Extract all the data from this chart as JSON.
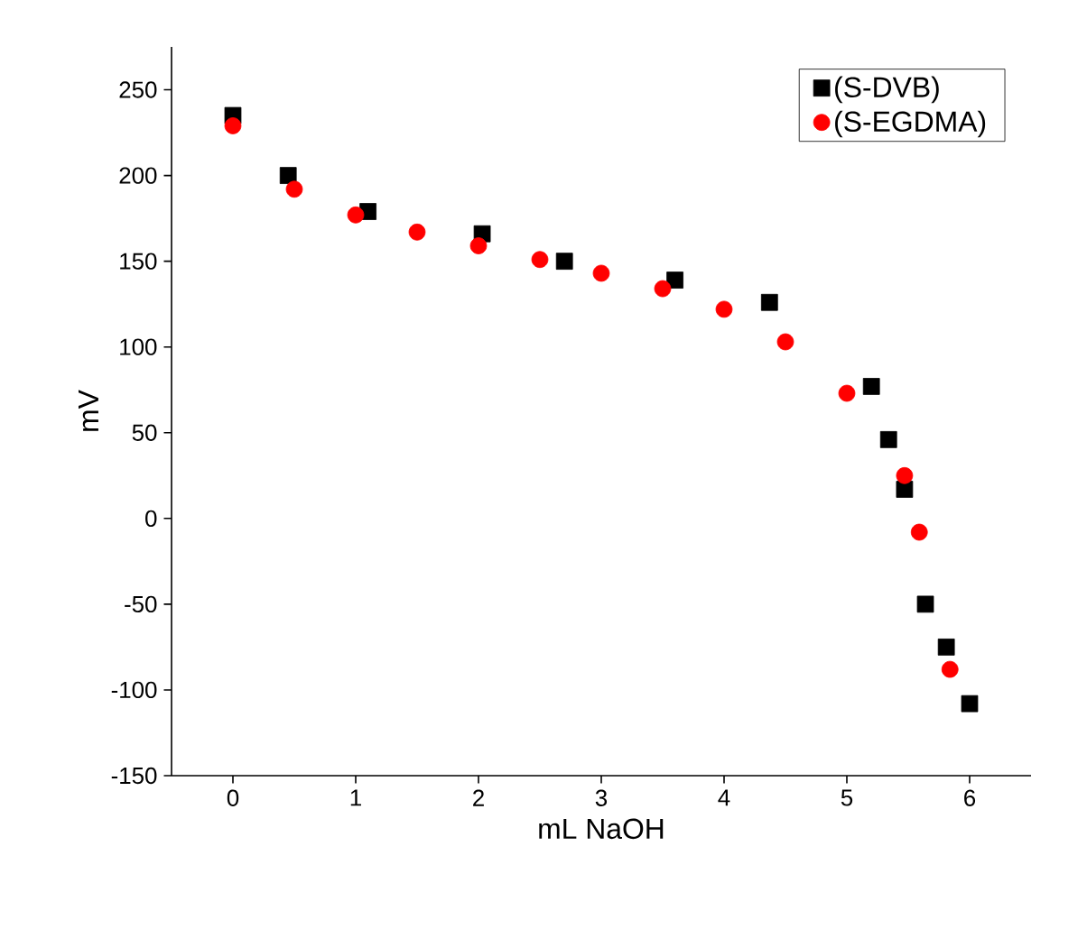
{
  "chart_data": {
    "type": "scatter",
    "xlabel": "mL NaOH",
    "ylabel": "mV",
    "xlim": [
      -0.5,
      6.5
    ],
    "ylim": [
      -150,
      275
    ],
    "xticks": [
      0,
      1,
      2,
      3,
      4,
      5,
      6
    ],
    "yticks": [
      -150,
      -100,
      -50,
      0,
      50,
      100,
      150,
      200,
      250
    ],
    "grid": false,
    "legend": "top right",
    "series": [
      {
        "name": "(S-DVB)",
        "color": "#000000",
        "marker": "square",
        "x": [
          0,
          0.45,
          1.1,
          2.03,
          2.7,
          3.6,
          4.37,
          5.2,
          5.34,
          5.47,
          5.64,
          5.81,
          6.0
        ],
        "values": [
          235,
          200,
          179,
          166,
          150,
          139,
          126,
          77,
          46,
          17,
          -50,
          -75,
          -108
        ]
      },
      {
        "name": "(S-EGDMA)",
        "color": "#ff0000",
        "marker": "circle",
        "x": [
          0,
          0.5,
          1.0,
          1.5,
          2.0,
          2.5,
          3.0,
          3.5,
          4.0,
          4.5,
          5.0,
          5.47,
          5.59,
          5.84
        ],
        "values": [
          229,
          192,
          177,
          167,
          159,
          151,
          143,
          134,
          122,
          103,
          73,
          25,
          -8,
          -88
        ]
      }
    ]
  }
}
